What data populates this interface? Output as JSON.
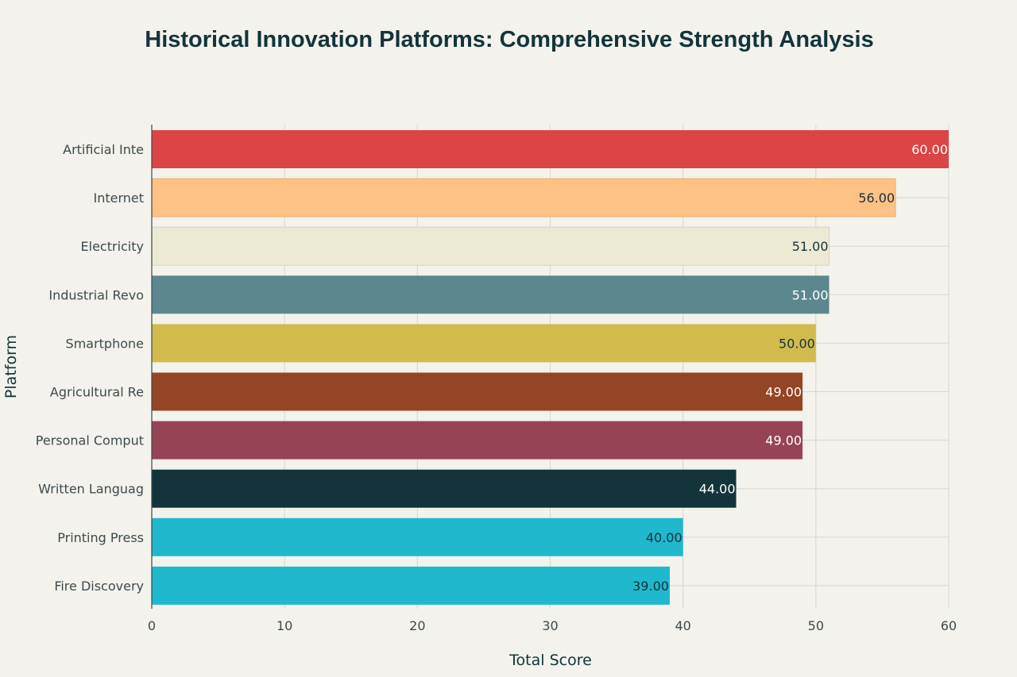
{
  "chart_data": {
    "type": "bar",
    "orientation": "horizontal",
    "title": "Historical Innovation Platforms: Comprehensive Strength Analysis",
    "xlabel": "Total Score",
    "ylabel": "Platform",
    "xlim": [
      0,
      60
    ],
    "xticks": [
      0,
      10,
      20,
      30,
      40,
      50,
      60
    ],
    "grid": true,
    "categories": [
      "Artificial Inte",
      "Internet",
      "Electricity",
      "Industrial Revo",
      "Smartphone",
      "Agricultural Re",
      "Personal Comput",
      "Written Languag",
      "Printing Press",
      "Fire Discovery"
    ],
    "values": [
      60,
      56,
      51,
      51,
      50,
      49,
      49,
      44,
      40,
      39
    ],
    "data_labels": [
      "60.00",
      "56.00",
      "51.00",
      "51.00",
      "50.00",
      "49.00",
      "49.00",
      "44.00",
      "40.00",
      "39.00"
    ],
    "colors": [
      "#db4545",
      "#ffc185",
      "#ece9d5",
      "#5d878f",
      "#d2ba4c",
      "#944525",
      "#964355",
      "#13343b",
      "#1fb8cd",
      "#1fb8cd"
    ],
    "label_colors": [
      "#ffffff",
      "#13343b",
      "#13343b",
      "#ffffff",
      "#13343b",
      "#ffffff",
      "#ffffff",
      "#ffffff",
      "#13343b",
      "#13343b"
    ]
  }
}
